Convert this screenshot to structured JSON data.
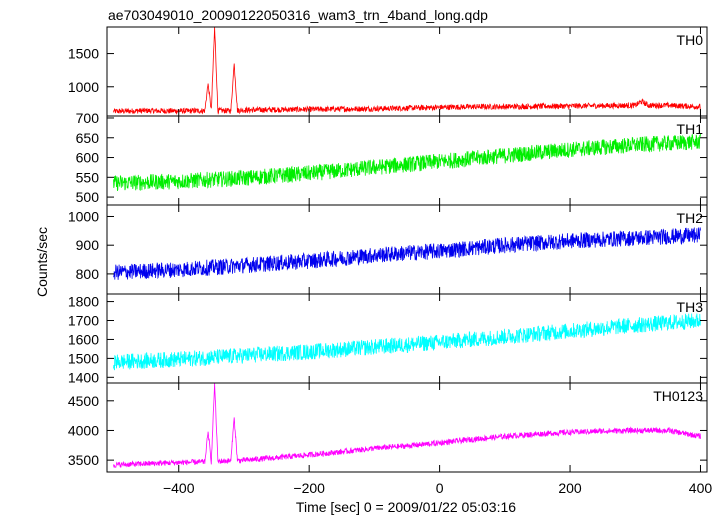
{
  "chart_data": {
    "type": "line",
    "title": "ae703049010_20090122050316_wam3_trn_4band_long.qdp",
    "xlabel": "Time [sec] 0 = 2009/01/22 05:03:16",
    "ylabel": "Counts/sec",
    "xlim": [
      -510,
      410
    ],
    "x_ticks": [
      -400,
      -200,
      0,
      200,
      400
    ],
    "x_tick_labels": [
      "−400",
      "−200",
      "0",
      "200",
      "400"
    ],
    "series": [
      {
        "name": "TH0",
        "color": "#ff0000",
        "ylim": [
          560,
          1900
        ],
        "y_ticks": [
          500,
          1000,
          1500
        ],
        "x": [
          -500,
          -450,
          -400,
          -360,
          -355,
          -350,
          -345,
          -340,
          -320,
          -315,
          -310,
          -300,
          -250,
          -200,
          -150,
          -100,
          -50,
          0,
          50,
          100,
          150,
          200,
          250,
          300,
          310,
          320,
          350,
          400
        ],
        "values": [
          630,
          640,
          635,
          640,
          1050,
          640,
          1900,
          640,
          640,
          1350,
          645,
          650,
          655,
          660,
          665,
          670,
          680,
          690,
          700,
          700,
          705,
          710,
          715,
          720,
          780,
          720,
          720,
          700
        ]
      },
      {
        "name": "TH1",
        "color": "#00ee00",
        "ylim": [
          480,
          705
        ],
        "y_ticks": [
          500,
          550,
          600,
          650,
          700
        ],
        "x": [
          -500,
          -400,
          -300,
          -200,
          -100,
          0,
          100,
          200,
          300,
          400
        ],
        "values": [
          535,
          540,
          548,
          560,
          575,
          590,
          605,
          620,
          632,
          640
        ]
      },
      {
        "name": "TH2",
        "color": "#0000ee",
        "ylim": [
          730,
          1040
        ],
        "y_ticks": [
          800,
          900,
          1000
        ],
        "x": [
          -500,
          -400,
          -300,
          -200,
          -100,
          0,
          100,
          200,
          300,
          400
        ],
        "values": [
          805,
          815,
          830,
          845,
          865,
          880,
          900,
          915,
          925,
          935
        ]
      },
      {
        "name": "TH3",
        "color": "#00ffff",
        "ylim": [
          1370,
          1840
        ],
        "y_ticks": [
          1400,
          1500,
          1600,
          1700,
          1800
        ],
        "x": [
          -500,
          -400,
          -300,
          -200,
          -100,
          0,
          100,
          200,
          300,
          400
        ],
        "values": [
          1480,
          1495,
          1515,
          1535,
          1560,
          1585,
          1615,
          1645,
          1675,
          1700
        ]
      },
      {
        "name": "TH0123",
        "color": "#ff00ff",
        "ylim": [
          3300,
          4800
        ],
        "y_ticks": [
          3500,
          4000,
          4500
        ],
        "x": [
          -500,
          -450,
          -400,
          -360,
          -355,
          -350,
          -345,
          -340,
          -320,
          -315,
          -310,
          -300,
          -250,
          -200,
          -150,
          -100,
          -50,
          0,
          50,
          100,
          150,
          200,
          250,
          300,
          350,
          400
        ],
        "values": [
          3420,
          3440,
          3460,
          3470,
          3980,
          3470,
          4800,
          3480,
          3490,
          4220,
          3490,
          3500,
          3540,
          3590,
          3640,
          3700,
          3740,
          3790,
          3850,
          3900,
          3940,
          3970,
          3990,
          4000,
          4000,
          3900
        ]
      }
    ]
  }
}
